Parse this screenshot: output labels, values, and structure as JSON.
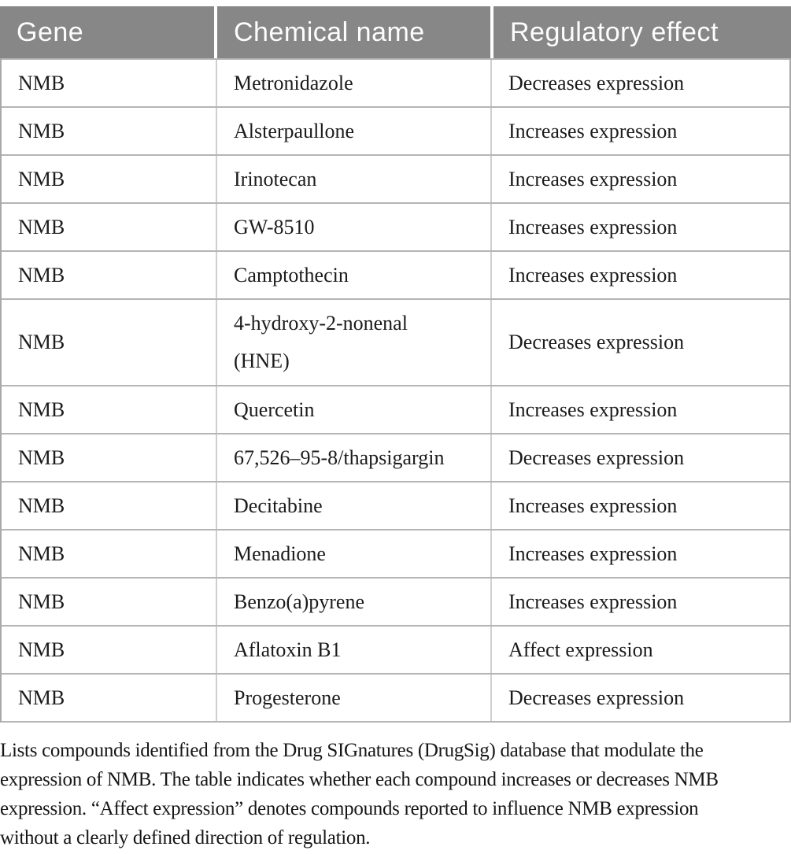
{
  "colors": {
    "header_bg": "#878787",
    "header_text": "#fdfdfd",
    "row_divider": "#b5b5b5",
    "column_divider": "#cfcfcf",
    "outer_border": "#a9a9a9",
    "body_text": "#1b1b1b"
  },
  "table": {
    "headers": [
      "Gene",
      "Chemical name",
      "Regulatory effect"
    ],
    "rows": [
      {
        "gene": "NMB",
        "chemical": "Metronidazole",
        "effect": "Decreases expression"
      },
      {
        "gene": "NMB",
        "chemical": "Alsterpaullone",
        "effect": "Increases expression"
      },
      {
        "gene": "NMB",
        "chemical": "Irinotecan",
        "effect": "Increases expression"
      },
      {
        "gene": "NMB",
        "chemical": "GW-8510",
        "effect": "Increases expression"
      },
      {
        "gene": "NMB",
        "chemical": "Camptothecin",
        "effect": "Increases expression"
      },
      {
        "gene": "NMB",
        "chemical": "4-hydroxy-2-nonenal\n(HNE)",
        "effect": "Decreases expression"
      },
      {
        "gene": "NMB",
        "chemical": "Quercetin",
        "effect": "Increases expression"
      },
      {
        "gene": "NMB",
        "chemical": "67,526–95-8/thapsigargin",
        "effect": "Decreases expression"
      },
      {
        "gene": "NMB",
        "chemical": "Decitabine",
        "effect": "Increases expression"
      },
      {
        "gene": "NMB",
        "chemical": "Menadione",
        "effect": "Increases expression"
      },
      {
        "gene": "NMB",
        "chemical": "Benzo(a)pyrene",
        "effect": "Increases expression"
      },
      {
        "gene": "NMB",
        "chemical": "Aflatoxin B1",
        "effect": "Affect expression"
      },
      {
        "gene": "NMB",
        "chemical": "Progesterone",
        "effect": "Decreases expression"
      }
    ]
  },
  "caption": {
    "lines": [
      "Lists compounds identified from the Drug SIGnatures (DrugSig) database that modulate the",
      "expression of NMB. The table indicates whether each compound increases or decreases NMB",
      "expression. “Affect expression” denotes compounds reported to influence NMB expression",
      "without a clearly defined direction of regulation."
    ]
  }
}
